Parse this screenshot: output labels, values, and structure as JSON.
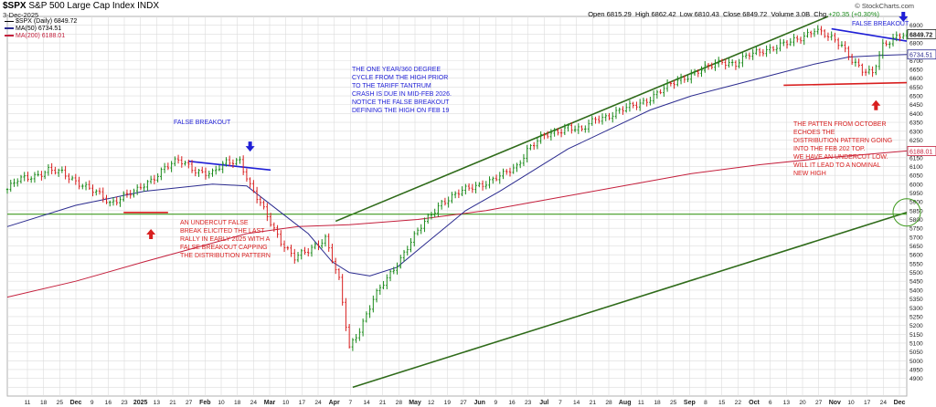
{
  "header": {
    "symbol": "$SPX",
    "name": "S&P 500 Large Cap Index",
    "exchange": "INDX",
    "date": "3-Dec-2025",
    "legend_main": "$SPX (Daily) 6849.72",
    "legend_ma50": "MA(50) 6734.51",
    "legend_ma200": "MA(200) 6188.01",
    "credit": "© StockCharts.com",
    "open_label": "Open",
    "open": "6815.29",
    "high_label": "High",
    "high": "6862.42",
    "low_label": "Low",
    "low": "6810.43",
    "close_label": "Close",
    "close": "6849.72",
    "volume_label": "Volume",
    "volume": "3.0B",
    "chg_label": "Chg",
    "chg": "+20.35 (+0.30%)"
  },
  "colors": {
    "up": "#1a8a1a",
    "down": "#d81f1f",
    "ma50": "#2b2b8f",
    "ma200": "#c41f3c",
    "channel": "#2f6b1a",
    "hline": "#3f9a1f",
    "blueline": "#1f1fd6",
    "redline": "#d81f1f",
    "grid": "#dcdcdc"
  },
  "annotations": {
    "cycle": "THE ONE YEAR/360 DEGREE\nCYCLE FROM THE HIGH PRIOR\nTO THE  TARIFF TANTRUM\nCRASH IS DUE IN MID-FEB 2026.\nNOTICE THE FALSE BREAKOUT\nDEFINING THE HIGH ON FEB 19",
    "false_breakout_left": "FALSE BREAKOUT",
    "false_breakout_right": "FALSE BREAKOUT",
    "undercut": "AN UNDERCUT FALSE\nBREAK ELICITED THE LAST\nRALLY IN EARLY 2025 WITH A\nFALSE BREAKOUT CAPPING\nTHE DISTRIBUTION PATTERN",
    "pattern": "THE PATTEN FROM OCTOBER\nECHOES THE\nDISTRIBUTION PATTERN GOING\nINTO THE FEB 202 TOP.\nWE HAVE AN UNDERCUT LOW.\nWILL IT LEAD TO A NOMINAL\nNEW HIGH"
  },
  "chart_data": {
    "type": "candlestick",
    "title": "$SPX S&P 500 Large Cap Index INDX",
    "y_axis": {
      "min": 4800,
      "max": 6950,
      "side": "right",
      "ticks": [
        4850,
        4900,
        4950,
        5000,
        5050,
        5100,
        5150,
        5200,
        5250,
        5300,
        5350,
        5400,
        5450,
        5500,
        5550,
        5600,
        5650,
        5700,
        5750,
        5800,
        5850,
        5900,
        5950,
        6000,
        6050,
        6100,
        6150,
        6200,
        6250,
        6300,
        6350,
        6400,
        6450,
        6500,
        6550,
        6600,
        6650,
        6700,
        6750,
        6800,
        6850,
        6900
      ],
      "ticks_labeled": [
        4900,
        4950,
        5000,
        5050,
        5100,
        5150,
        5200,
        5250,
        5300,
        5350,
        5400,
        5450,
        5500,
        5550,
        5600,
        5650,
        5700,
        5750,
        5800,
        5850,
        5900,
        5950,
        6000,
        6050,
        6100,
        6150,
        6200,
        6250,
        6300,
        6350,
        6400,
        6450,
        6500,
        6550,
        6600,
        6650,
        6700,
        6750,
        6800,
        6850,
        6900
      ],
      "price_tags": [
        {
          "label": "6849.72",
          "value": 6849.72
        },
        {
          "label": "6734.51",
          "value": 6734.51
        },
        {
          "label": "6188.01",
          "value": 6188.01
        }
      ]
    },
    "x_axis": {
      "tick_labels": [
        "11",
        "18",
        "25",
        "Dec",
        "9",
        "16",
        "23",
        "2025",
        "13",
        "21",
        "27",
        "Feb",
        "10",
        "18",
        "24",
        "Mar",
        "10",
        "17",
        "24",
        "Apr",
        "7",
        "14",
        "21",
        "28",
        "May",
        "12",
        "19",
        "27",
        "Jun",
        "9",
        "16",
        "23",
        "Jul",
        "7",
        "14",
        "21",
        "28",
        "Aug",
        "11",
        "18",
        "25",
        "Sep",
        "8",
        "15",
        "22",
        "Oct",
        "6",
        "13",
        "20",
        "27",
        "Nov",
        "10",
        "17",
        "24",
        "Dec"
      ]
    },
    "close_path": [
      [
        0,
        5970
      ],
      [
        3,
        6020
      ],
      [
        8,
        6050
      ],
      [
        12,
        6080
      ],
      [
        16,
        6060
      ],
      [
        22,
        6000
      ],
      [
        26,
        5950
      ],
      [
        30,
        5890
      ],
      [
        34,
        5940
      ],
      [
        38,
        5960
      ],
      [
        42,
        6020
      ],
      [
        46,
        6100
      ],
      [
        50,
        6130
      ],
      [
        55,
        6080
      ],
      [
        60,
        6060
      ],
      [
        64,
        6120
      ],
      [
        68,
        6140
      ],
      [
        71,
        5990
      ],
      [
        75,
        5850
      ],
      [
        80,
        5680
      ],
      [
        84,
        5580
      ],
      [
        88,
        5620
      ],
      [
        93,
        5700
      ],
      [
        97,
        5450
      ],
      [
        100,
        5070
      ],
      [
        103,
        5180
      ],
      [
        107,
        5350
      ],
      [
        111,
        5460
      ],
      [
        114,
        5550
      ],
      [
        118,
        5680
      ],
      [
        122,
        5780
      ],
      [
        127,
        5900
      ],
      [
        132,
        5950
      ],
      [
        137,
        5990
      ],
      [
        141,
        6020
      ],
      [
        145,
        6050
      ],
      [
        149,
        6100
      ],
      [
        152,
        6200
      ],
      [
        156,
        6260
      ],
      [
        160,
        6290
      ],
      [
        164,
        6330
      ],
      [
        168,
        6300
      ],
      [
        172,
        6370
      ],
      [
        176,
        6390
      ],
      [
        180,
        6420
      ],
      [
        185,
        6460
      ],
      [
        189,
        6500
      ],
      [
        193,
        6550
      ],
      [
        197,
        6600
      ],
      [
        201,
        6630
      ],
      [
        205,
        6660
      ],
      [
        209,
        6700
      ],
      [
        213,
        6680
      ],
      [
        217,
        6730
      ],
      [
        221,
        6760
      ],
      [
        225,
        6780
      ],
      [
        229,
        6800
      ],
      [
        232,
        6830
      ],
      [
        236,
        6880
      ],
      [
        240,
        6830
      ],
      [
        244,
        6790
      ],
      [
        247,
        6710
      ],
      [
        250,
        6640
      ],
      [
        253,
        6620
      ],
      [
        256,
        6790
      ],
      [
        259,
        6830
      ],
      [
        263,
        6849.72
      ]
    ],
    "ma50": {
      "name": "MA(50)",
      "path": [
        [
          0,
          5760
        ],
        [
          20,
          5880
        ],
        [
          40,
          5960
        ],
        [
          60,
          6000
        ],
        [
          70,
          5990
        ],
        [
          80,
          5840
        ],
        [
          88,
          5720
        ],
        [
          95,
          5560
        ],
        [
          100,
          5500
        ],
        [
          106,
          5480
        ],
        [
          114,
          5530
        ],
        [
          124,
          5690
        ],
        [
          134,
          5850
        ],
        [
          144,
          5960
        ],
        [
          154,
          6080
        ],
        [
          164,
          6200
        ],
        [
          176,
          6310
        ],
        [
          188,
          6420
        ],
        [
          200,
          6500
        ],
        [
          212,
          6560
        ],
        [
          224,
          6620
        ],
        [
          236,
          6680
        ],
        [
          246,
          6720
        ],
        [
          256,
          6730
        ],
        [
          263,
          6734.51
        ]
      ]
    },
    "ma200": {
      "name": "MA(200)",
      "path": [
        [
          0,
          5360
        ],
        [
          20,
          5450
        ],
        [
          40,
          5560
        ],
        [
          55,
          5640
        ],
        [
          70,
          5720
        ],
        [
          85,
          5760
        ],
        [
          100,
          5770
        ],
        [
          120,
          5800
        ],
        [
          140,
          5850
        ],
        [
          160,
          5920
        ],
        [
          180,
          5990
        ],
        [
          200,
          6060
        ],
        [
          220,
          6110
        ],
        [
          240,
          6150
        ],
        [
          263,
          6188.01
        ]
      ]
    },
    "trendlines": [
      {
        "kind": "channel_top",
        "from": [
          96,
          5790
        ],
        "to": [
          240,
          6950
        ]
      },
      {
        "kind": "channel_bottom",
        "from": [
          101,
          4850
        ],
        "to": [
          263,
          5840
        ]
      },
      {
        "kind": "horizontal_support",
        "value": 5830
      },
      {
        "kind": "blue_resistance_left",
        "from": [
          53,
          6130
        ],
        "to": [
          77,
          6080
        ]
      },
      {
        "kind": "blue_resistance_right",
        "from": [
          241,
          6880
        ],
        "to": [
          263,
          6810
        ]
      },
      {
        "kind": "red_support_left",
        "from": [
          34,
          5840
        ],
        "to": [
          47,
          5840
        ]
      },
      {
        "kind": "red_support_right",
        "from": [
          227,
          6560
        ],
        "to": [
          263,
          6575
        ]
      }
    ],
    "markers": [
      {
        "kind": "arrow_down",
        "color": "blue",
        "at": [
          71,
          6210
        ]
      },
      {
        "kind": "arrow_up",
        "color": "red",
        "at": [
          42,
          5720
        ]
      },
      {
        "kind": "arrow_up",
        "color": "red",
        "at": [
          254,
          6450
        ]
      },
      {
        "kind": "arrow_down",
        "color": "blue",
        "at": [
          262,
          6945
        ]
      },
      {
        "kind": "circle",
        "color": "green",
        "at": [
          263,
          5840
        ]
      }
    ],
    "grid": true
  }
}
